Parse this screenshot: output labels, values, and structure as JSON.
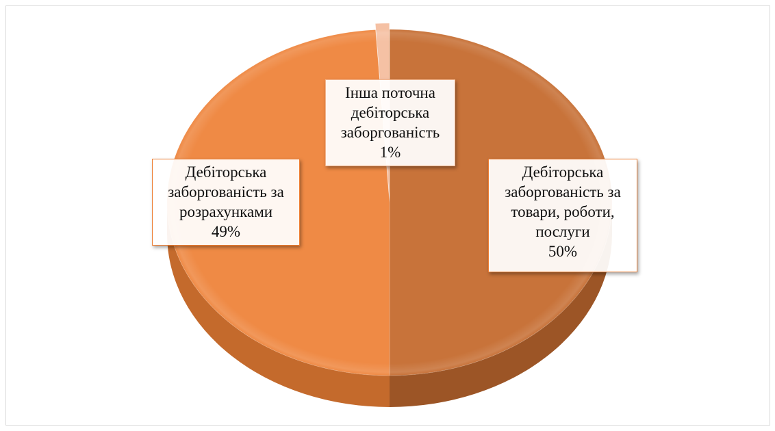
{
  "chart_data": {
    "type": "pie",
    "style": "3d-exploded",
    "start_angle_deg": 0,
    "direction": "clockwise",
    "slices": [
      {
        "category": "Дебіторська\nзаборгованість за\nтовари, роботи,\nпослуги",
        "value": 50,
        "percent_label": "50%",
        "color": "#c8733a",
        "side_color": "#9c5526"
      },
      {
        "category": "Дебіторська\nзаборгованість за\nрозрахунками",
        "value": 49,
        "percent_label": "49%",
        "color": "#ef8a45",
        "side_color": "#c46a2c"
      },
      {
        "category": "Інша поточна\nдебіторська\nзаборгованість",
        "value": 1,
        "percent_label": "1%",
        "color": "#f5c1a4",
        "side_color": "#d99a76"
      }
    ],
    "legend": "none",
    "show_percent_labels": true
  }
}
